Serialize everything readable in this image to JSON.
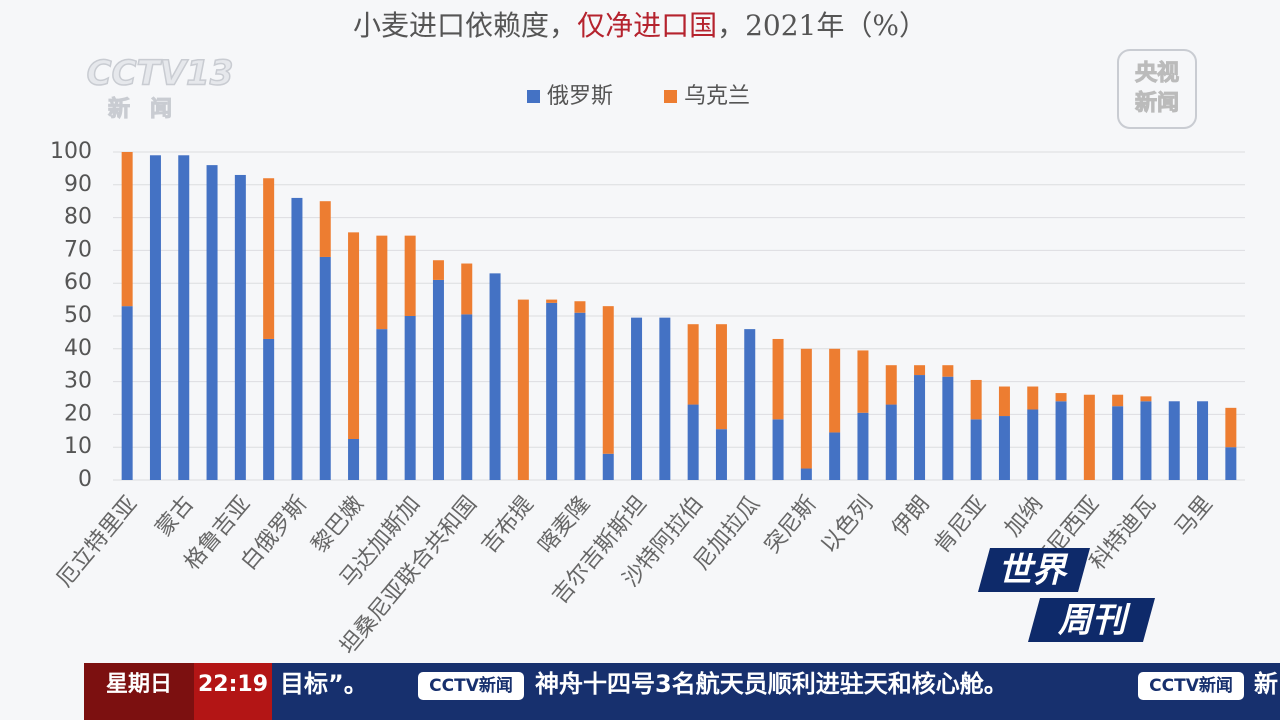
{
  "chart_data": {
    "type": "stacked_bar",
    "title_segments": [
      {
        "text": "小麦进口依赖度，",
        "color": "#555555"
      },
      {
        "text": "仅净进口国",
        "color": "#b5232e"
      },
      {
        "text": "，2021年（%）",
        "color": "#555555"
      }
    ],
    "categories": [
      "厄立特里亚",
      null,
      "蒙古",
      null,
      "格鲁吉亚",
      null,
      "白俄罗斯",
      null,
      "黎巴嫩",
      null,
      "马达加斯加",
      null,
      "坦桑尼亚联合共和国",
      null,
      "吉布提",
      null,
      "喀麦隆",
      null,
      "吉尔吉斯斯坦",
      null,
      "沙特阿拉伯",
      null,
      "尼加拉瓜",
      null,
      "突尼斯",
      null,
      "以色列",
      null,
      "伊朗",
      null,
      "肯尼亚",
      null,
      "加纳",
      null,
      "印度尼西亚",
      null,
      "科特迪瓦",
      null,
      "马里",
      null
    ],
    "series": [
      {
        "name": "俄罗斯",
        "color": "#4472c4",
        "values": [
          53,
          99,
          99,
          96,
          93,
          43,
          86,
          68,
          12.5,
          46,
          50,
          61,
          50.5,
          63,
          0,
          54,
          51,
          8,
          49.5,
          49.5,
          23,
          15.5,
          46,
          18.5,
          3.5,
          14.5,
          20.5,
          23,
          32,
          31.5,
          18.5,
          19.5,
          21.5,
          24,
          0,
          22.5,
          24,
          24,
          24,
          10
        ]
      },
      {
        "name": "乌克兰",
        "color": "#ed7d31",
        "values": [
          47,
          0,
          0,
          0,
          0,
          49,
          0,
          17,
          63,
          28.5,
          24.5,
          6,
          15.5,
          0,
          55,
          1,
          3.5,
          45,
          0,
          0,
          24.5,
          32,
          0,
          24.5,
          36.5,
          25.5,
          19,
          12,
          3,
          3.5,
          12,
          9,
          7,
          2.5,
          26,
          3.5,
          1.5,
          0,
          0,
          12
        ]
      }
    ],
    "ylim": [
      0,
      100
    ],
    "yticks": [
      0,
      10,
      20,
      30,
      40,
      50,
      60,
      70,
      80,
      90,
      100
    ],
    "grid": true,
    "legend": "top"
  },
  "overlay": {
    "channel": "CCTV13",
    "channel_sub": "新闻",
    "app_top": "央视",
    "app_bottom": "新闻",
    "show_top": "世界",
    "show_bottom": "周刊",
    "weekday": "星期日",
    "time": "22:19",
    "ticker": [
      "目标”。",
      "CCTV新闻",
      "神舟十四号3名航天员顺利进驻天和核心舱。",
      "CCTV新闻",
      "新"
    ]
  }
}
